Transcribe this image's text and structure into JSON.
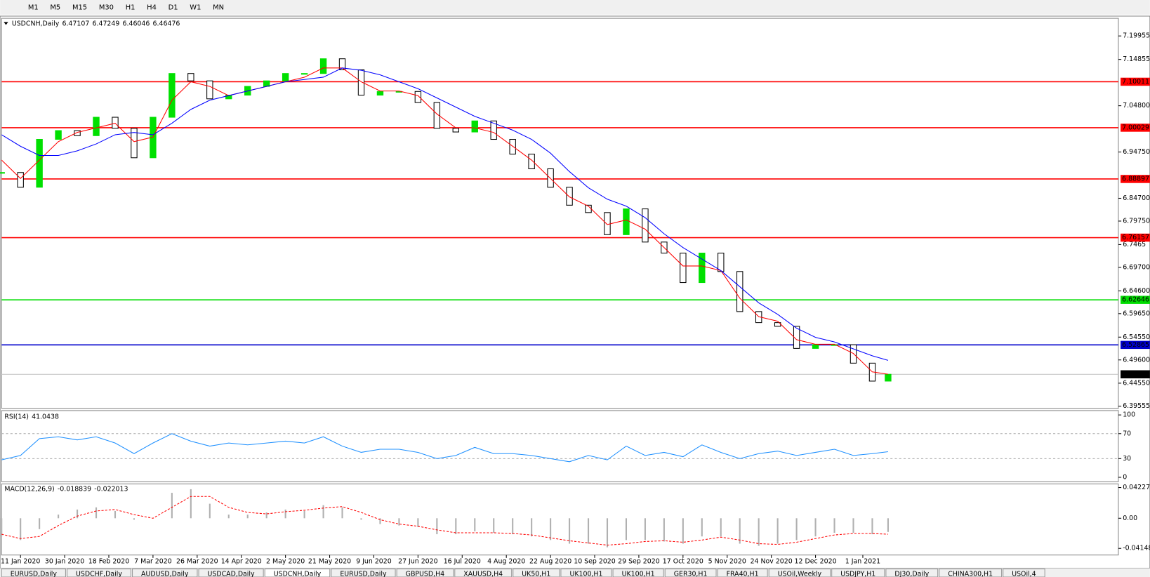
{
  "toolbar": {
    "timeframes": [
      "M1",
      "M5",
      "M15",
      "M30",
      "H1",
      "H4",
      "D1",
      "W1",
      "MN"
    ]
  },
  "tabs": [
    "EURUSD,Daily",
    "USDCHF,Daily",
    "AUDUSD,Daily",
    "USDCAD,Daily",
    "USDCNH,Daily",
    "EURUSD,Daily",
    "GBPUSD,H4",
    "XAUUSD,H4",
    "UK50,H1",
    "UK100,H1",
    "UK100,H1",
    "GER30,H1",
    "FRA40,H1",
    "USOil,Weekly",
    "USDJPY,H1",
    "DJ30,Daily",
    "CHINA300,H1",
    "USOil,4"
  ],
  "active_tab": "USDCNH,Daily",
  "chart_data": [
    {
      "type": "candlestick",
      "symbol": "USDCNH,Daily",
      "ohlc": [
        6.47107,
        6.47249,
        6.46046,
        6.46476
      ],
      "x": [
        0,
        6,
        12,
        18,
        24,
        30,
        36,
        42,
        48,
        54,
        60,
        66,
        72,
        78,
        84,
        90,
        96,
        102,
        108,
        114,
        120,
        126,
        132,
        138,
        144,
        150,
        156,
        162,
        168,
        174,
        180,
        186,
        192,
        198,
        204,
        210,
        216,
        222,
        228,
        234,
        240,
        246,
        252,
        258,
        264,
        270,
        276,
        281
      ],
      "series": [
        {
          "kind": "candle",
          "up_color": "#00e000",
          "down_color": "#000000",
          "values": [
            6.903,
            6.871,
            6.975,
            6.994,
            6.983,
            7.023,
            6.999,
            6.935,
            7.023,
            7.118,
            7.102,
            7.063,
            7.071,
            7.09,
            7.102,
            7.118,
            7.118,
            7.15,
            7.126,
            7.071,
            7.079,
            7.079,
            7.055,
            6.999,
            6.991,
            7.015,
            6.975,
            6.943,
            6.911,
            6.871,
            6.832,
            6.816,
            6.768,
            6.824,
            6.752,
            6.728,
            6.664,
            6.728,
            6.688,
            6.601,
            6.577,
            6.569,
            6.521,
            6.529,
            6.529,
            6.489,
            6.45,
            6.46476
          ]
        },
        {
          "kind": "line",
          "color": "#ff0000",
          "values": [
            6.93,
            6.89,
            6.93,
            6.97,
            6.99,
            7.0,
            7.01,
            6.97,
            6.98,
            7.06,
            7.1,
            7.09,
            7.07,
            7.08,
            7.09,
            7.1,
            7.11,
            7.13,
            7.13,
            7.1,
            7.08,
            7.08,
            7.07,
            7.03,
            7.0,
            7.0,
            6.99,
            6.96,
            6.93,
            6.89,
            6.85,
            6.83,
            6.79,
            6.8,
            6.78,
            6.74,
            6.7,
            6.7,
            6.69,
            6.63,
            6.59,
            6.58,
            6.54,
            6.53,
            6.53,
            6.51,
            6.47,
            6.465
          ]
        },
        {
          "kind": "line",
          "color": "#0000ff",
          "values": [
            6.985,
            6.96,
            6.94,
            6.94,
            6.95,
            6.965,
            6.985,
            6.99,
            6.985,
            7.01,
            7.04,
            7.06,
            7.07,
            7.08,
            7.09,
            7.1,
            7.105,
            7.11,
            7.13,
            7.125,
            7.115,
            7.1,
            7.085,
            7.065,
            7.045,
            7.025,
            7.01,
            6.995,
            6.975,
            6.945,
            6.905,
            6.87,
            6.845,
            6.83,
            6.805,
            6.77,
            6.74,
            6.715,
            6.69,
            6.655,
            6.62,
            6.595,
            6.565,
            6.545,
            6.535,
            6.52,
            6.505,
            6.495
          ]
        }
      ],
      "levels": [
        {
          "value": 7.10011,
          "color": "#ff0000"
        },
        {
          "value": 7.00029,
          "color": "#ff0000"
        },
        {
          "value": 6.88897,
          "color": "#ff0000"
        },
        {
          "value": 6.76157,
          "color": "#ff0000"
        },
        {
          "value": 6.62646,
          "color": "#00dd00"
        },
        {
          "value": 6.52865,
          "color": "#0000cc"
        },
        {
          "value": 6.46476,
          "color": "#000000",
          "line_color": "#c0c0c0"
        }
      ],
      "xlim": [
        0,
        354
      ],
      "ylim": [
        6.3908,
        7.2378
      ],
      "xticks": [
        {
          "value": 6,
          "label": "11 Jan 2020"
        },
        {
          "value": 20,
          "label": "30 Jan 2020"
        },
        {
          "value": 34,
          "label": "18 Feb 2020"
        },
        {
          "value": 48,
          "label": "7 Mar 2020"
        },
        {
          "value": 62,
          "label": "26 Mar 2020"
        },
        {
          "value": 76,
          "label": "14 Apr 2020"
        },
        {
          "value": 90,
          "label": "2 May 2020"
        },
        {
          "value": 104,
          "label": "21 May 2020"
        },
        {
          "value": 118,
          "label": "9 Jun 2020"
        },
        {
          "value": 132,
          "label": "27 Jun 2020"
        },
        {
          "value": 146,
          "label": "16 Jul 2020"
        },
        {
          "value": 160,
          "label": "4 Aug 2020"
        },
        {
          "value": 174,
          "label": "22 Aug 2020"
        },
        {
          "value": 188,
          "label": "10 Sep 2020"
        },
        {
          "value": 202,
          "label": "29 Sep 2020"
        },
        {
          "value": 216,
          "label": "17 Oct 2020"
        },
        {
          "value": 230,
          "label": "5 Nov 2020"
        },
        {
          "value": 244,
          "label": "24 Nov 2020"
        },
        {
          "value": 258,
          "label": "12 Dec 2020"
        },
        {
          "value": 273,
          "label": "1 Jan 2021"
        }
      ],
      "yticks": [
        7.19955,
        7.14855,
        {
          "value": 7.048,
          "label": "7.04800"
        },
        {
          "value": 6.9475,
          "label": "6.94750"
        },
        {
          "value": 6.847,
          "label": "6.84700"
        },
        {
          "value": 6.7975,
          "label": "6.79750"
        },
        6.7465,
        {
          "value": 6.697,
          "label": "6.69700"
        },
        {
          "value": 6.646,
          "label": "6.64600"
        },
        {
          "value": 6.5965,
          "label": "6.59650"
        },
        {
          "value": 6.5455,
          "label": "6.54550"
        },
        {
          "value": 6.496,
          "label": "6.49600"
        },
        {
          "value": 6.4455,
          "label": "6.44550"
        },
        6.39555
      ]
    },
    {
      "type": "line",
      "title": "RSI(14)",
      "last": 41.0438,
      "color": "#1e90ff",
      "values": [
        28,
        35,
        62,
        65,
        60,
        65,
        55,
        38,
        55,
        70,
        58,
        50,
        55,
        52,
        55,
        58,
        55,
        65,
        50,
        40,
        45,
        45,
        40,
        30,
        35,
        48,
        38,
        38,
        35,
        30,
        25,
        35,
        28,
        50,
        35,
        40,
        33,
        52,
        40,
        30,
        38,
        42,
        35,
        40,
        45,
        35,
        38,
        41.0438
      ],
      "ylim": [
        -7,
        107
      ],
      "yticks": [
        100,
        70,
        30,
        0
      ],
      "levels": [
        70,
        30
      ]
    },
    {
      "type": "macd",
      "title": "MACD(12,26,9)",
      "last": [
        -0.018839,
        -0.022013
      ],
      "bar_color": "#b0b0b0",
      "signal_color": "#ff0000",
      "values": [
        -0.025,
        -0.03,
        -0.015,
        0.005,
        0.012,
        0.015,
        0.01,
        -0.002,
        0,
        0.035,
        0.04,
        0.02,
        0.005,
        0.005,
        0.008,
        0.012,
        0.01,
        0.018,
        0.015,
        -0.002,
        -0.008,
        -0.01,
        -0.012,
        -0.022,
        -0.022,
        -0.018,
        -0.02,
        -0.022,
        -0.025,
        -0.03,
        -0.035,
        -0.035,
        -0.04,
        -0.03,
        -0.03,
        -0.032,
        -0.035,
        -0.025,
        -0.025,
        -0.035,
        -0.038,
        -0.035,
        -0.03,
        -0.025,
        -0.02,
        -0.02,
        -0.022,
        -0.018839
      ],
      "signal": [
        -0.022,
        -0.028,
        -0.025,
        -0.01,
        0.003,
        0.01,
        0.012,
        0.005,
        0,
        0.015,
        0.03,
        0.03,
        0.015,
        0.008,
        0.006,
        0.009,
        0.011,
        0.014,
        0.016,
        0.008,
        -0.002,
        -0.008,
        -0.011,
        -0.016,
        -0.02,
        -0.02,
        -0.02,
        -0.021,
        -0.023,
        -0.027,
        -0.031,
        -0.034,
        -0.037,
        -0.035,
        -0.032,
        -0.031,
        -0.033,
        -0.03,
        -0.026,
        -0.03,
        -0.035,
        -0.036,
        -0.033,
        -0.028,
        -0.023,
        -0.021,
        -0.021,
        -0.022013
      ],
      "ylim": [
        -0.0506,
        0.0473
      ],
      "yticks": [
        0.042275,
        {
          "value": 0,
          "label": "0.00"
        },
        -0.04148
      ]
    }
  ]
}
